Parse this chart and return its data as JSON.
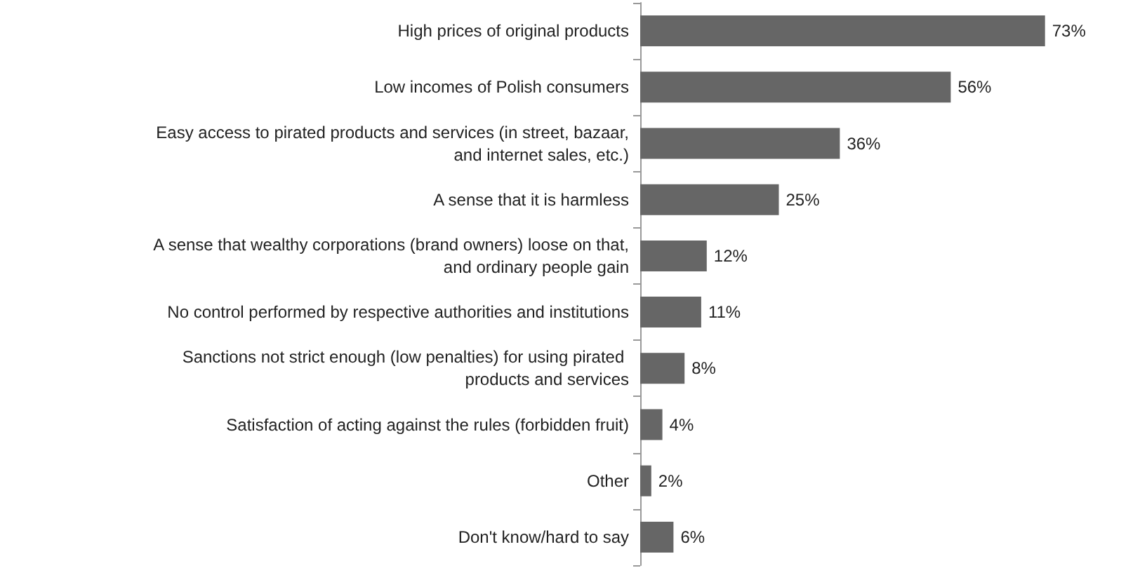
{
  "chart_data": {
    "type": "bar",
    "orientation": "horizontal",
    "color": "#666666",
    "categories": [
      "High prices of original products",
      "Low incomes of Polish consumers",
      "Easy access to pirated products and services (in street, bazaar, and internet sales, etc.)",
      "A sense that it is harmless",
      "A sense that wealthy corporations (brand owners) loose on that, and ordinary people gain",
      "No control performed by respective authorities and institutions",
      "Sanctions not strict enough (low penalties) for using pirated products and services",
      "Satisfaction of acting against the rules (forbidden fruit)",
      "Other",
      "Don't know/hard to say"
    ],
    "values": [
      73,
      56,
      36,
      25,
      12,
      11,
      8,
      4,
      2,
      6
    ],
    "value_labels": [
      "73%",
      "56%",
      "36%",
      "25%",
      "12%",
      "11%",
      "8%",
      "4%",
      "2%",
      "6%"
    ]
  }
}
